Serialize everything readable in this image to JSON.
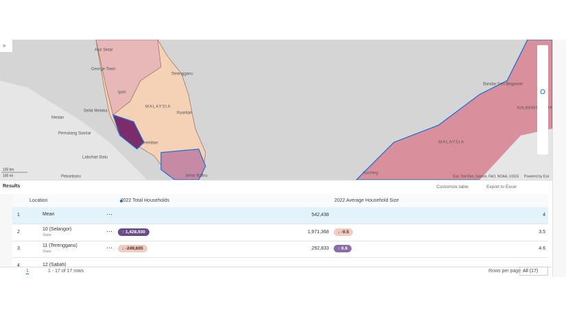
{
  "map": {
    "labels": [
      "Alor Setar",
      "George Town",
      "Ipoh",
      "Terengganu",
      "MALAYSIA",
      "Kuantan",
      "Seremban",
      "Medan",
      "Pematang Siantar",
      "Selat Melaka",
      "Labuhan Batu",
      "Pekanbaru",
      "MALAYSIA",
      "Bandar Seri Begawan",
      "KALIMANTAN UTARA",
      "Kuching",
      "Johor Bahru"
    ],
    "scale": [
      "100 km",
      "100 mi"
    ],
    "attribution": "Esri, TomTom, Garmin, FAO, NOAA, USGS",
    "powered": "Powered by Esri"
  },
  "results": {
    "title": "Results",
    "actions": [
      "Customize table",
      "Export to Excel"
    ]
  },
  "table": {
    "headers": [
      "Location",
      "2022 Total Households",
      "2022 Average Household Size"
    ],
    "rows": [
      {
        "index": "1",
        "location": "Mean",
        "households": "542,438",
        "size": "4"
      },
      {
        "index": "2",
        "location": "10 (Selangor)",
        "kind": "State",
        "households_change": "↑ 1,428,930",
        "households": "1,971,368",
        "size_change": "↓ -0.5",
        "size": "3.5"
      },
      {
        "index": "3",
        "location": "11 (Terengganu)",
        "kind": "State",
        "households_change": "↓ -249,605",
        "households": "292,833",
        "size_change": "↑ 0.6",
        "size": "4.6"
      },
      {
        "index": "4",
        "location": "12 (Sabah)"
      }
    ]
  },
  "footer": {
    "page": "1",
    "range": "1 - 17 of 17 rows",
    "rows_per_page": "Rows per page",
    "rows_select": "All (17)"
  }
}
